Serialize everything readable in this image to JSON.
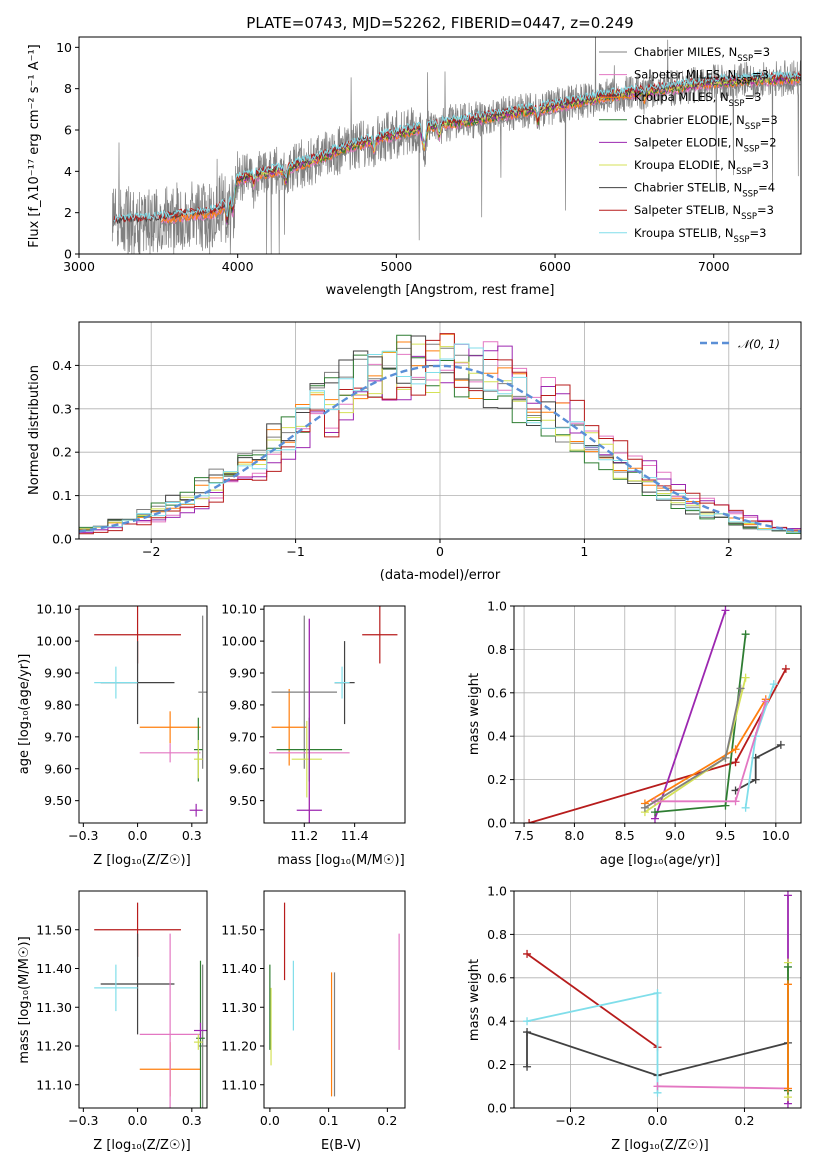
{
  "colors": {
    "chabrier_miles": "#7f7f7f",
    "salpeter_miles": "#e377c2",
    "kroupa_miles": "#ff7f0e",
    "chabrier_elodie": "#2e7d32",
    "salpeter_elodie": "#9c27b0",
    "kroupa_elodie": "#d4e157",
    "chabrier_stelib": "#424242",
    "salpeter_stelib": "#b71c1c",
    "kroupa_stelib": "#80deea",
    "normal": "#5b8fd6"
  },
  "chart_data": [
    {
      "type": "line",
      "title": "PLATE=0743, MJD=52262, FIBERID=0447, z=0.249",
      "xlabel": "wavelength [Angstrom, rest frame]",
      "ylabel": "Flux [f_λ10⁻¹⁷ erg cm⁻² s⁻¹ A⁻¹]",
      "xlim": [
        3000,
        7550
      ],
      "ylim": [
        0,
        10.5
      ],
      "xticks": [
        3000,
        4000,
        5000,
        6000,
        7000
      ],
      "yticks": [
        0,
        2,
        4,
        6,
        8,
        10
      ],
      "legend_position": "top-right",
      "legend": [
        "Chabrier MILES, N_SSP=3",
        "Salpeter MILES, N_SSP=3",
        "Kroupa MILES, N_SSP=3",
        "Chabrier ELODIE, N_SSP=3",
        "Salpeter ELODIE, N_SSP=2",
        "Kroupa ELODIE, N_SSP=3",
        "Chabrier STELIB, N_SSP=4",
        "Salpeter STELIB, N_SSP=3",
        "Kroupa STELIB, N_SSP=3"
      ],
      "continuum": {
        "x": [
          3210,
          3300,
          3400,
          3500,
          3700,
          3850,
          3950,
          4000,
          4100,
          4300,
          4500,
          4700,
          4900,
          5100,
          5300,
          5500,
          5700,
          5900,
          6100,
          6300,
          6500,
          6800,
          7000,
          7200,
          7550
        ],
        "y": [
          1.5,
          1.6,
          1.6,
          1.7,
          1.9,
          2.0,
          2.5,
          3.6,
          3.8,
          4.1,
          4.6,
          5.2,
          5.6,
          6.0,
          6.3,
          6.5,
          6.8,
          7.0,
          7.3,
          7.6,
          7.8,
          8.1,
          8.3,
          8.4,
          8.5
        ]
      },
      "series": [
        {
          "name": "Chabrier MILES, N_SSP=3",
          "start": 3520
        },
        {
          "name": "Salpeter MILES, N_SSP=3",
          "start": 3520
        },
        {
          "name": "Kroupa MILES, N_SSP=3",
          "start": 3520
        },
        {
          "name": "Chabrier ELODIE, N_SSP=3",
          "start": 3920
        },
        {
          "name": "Salpeter ELODIE, N_SSP=2",
          "start": 3920
        },
        {
          "name": "Kroupa ELODIE, N_SSP=3",
          "start": 3920
        },
        {
          "name": "Chabrier STELIB, N_SSP=4",
          "start": 3220
        },
        {
          "name": "Salpeter STELIB, N_SSP=3",
          "start": 3220
        },
        {
          "name": "Kroupa STELIB, N_SSP=3",
          "start": 3220
        }
      ]
    },
    {
      "type": "line",
      "xlabel": "(data-model)/error",
      "ylabel": "Normed distribution",
      "xlim": [
        -2.5,
        2.5
      ],
      "ylim": [
        0,
        0.5
      ],
      "xticks": [
        -2,
        -1,
        0,
        1,
        2
      ],
      "yticks": [
        0.0,
        0.1,
        0.2,
        0.3,
        0.4
      ],
      "grid": true,
      "legend_position": "top-right",
      "normal_label": "𝒩(0, 1)",
      "description": "step histograms of residuals for the nine fits, plus dashed standard normal density"
    },
    {
      "type": "scatter",
      "xlabel": "Z [log₁₀(Z/Z☉)]",
      "ylabel": "age  [log₁₀(age/yr)]",
      "xlim": [
        -0.27,
        0.32
      ],
      "ylim": [
        9.43,
        10.11
      ],
      "xticks": [
        -0.25,
        0.0,
        0.25
      ],
      "yticks": [
        9.5,
        9.6,
        9.7,
        9.8,
        9.9,
        10.0,
        10.1
      ],
      "points": [
        {
          "fit": "Salpeter STELIB",
          "x": 0.0,
          "y": 10.02,
          "xerr": 0.2,
          "yerr": 0.09
        },
        {
          "fit": "Chabrier STELIB",
          "x": 0.0,
          "y": 9.87,
          "xerr": 0.17,
          "yerr": 0.13
        },
        {
          "fit": "Kroupa STELIB",
          "x": -0.1,
          "y": 9.87,
          "xerr": 0.1,
          "yerr": 0.05
        },
        {
          "fit": "Kroupa MILES",
          "x": 0.15,
          "y": 9.73,
          "xerr": 0.14,
          "yerr": 0.05
        },
        {
          "fit": "Chabrier MILES",
          "x": 0.3,
          "y": 9.84,
          "xerr": 0.02,
          "yerr": 0.24
        },
        {
          "fit": "Salpeter MILES",
          "x": 0.15,
          "y": 9.65,
          "xerr": 0.14,
          "yerr": 0.03
        },
        {
          "fit": "Chabrier ELODIE",
          "x": 0.28,
          "y": 9.66,
          "xerr": 0.02,
          "yerr": 0.1
        },
        {
          "fit": "Kroupa ELODIE",
          "x": 0.28,
          "y": 9.63,
          "xerr": 0.02,
          "yerr": 0.06
        },
        {
          "fit": "Salpeter ELODIE",
          "x": 0.27,
          "y": 9.47,
          "xerr": 0.03,
          "yerr": 0.02
        }
      ]
    },
    {
      "type": "scatter",
      "xlabel": "mass [log₁₀(M/M☉)]",
      "xlim": [
        11.04,
        11.6
      ],
      "ylim": [
        9.43,
        10.11
      ],
      "xticks": [
        11.2,
        11.4
      ],
      "yticks": [
        9.5,
        9.6,
        9.7,
        9.8,
        9.9,
        10.0,
        10.1
      ],
      "points": [
        {
          "fit": "Salpeter STELIB",
          "x": 11.5,
          "y": 10.02,
          "xerr": 0.07,
          "yerr": 0.09
        },
        {
          "fit": "Chabrier STELIB",
          "x": 11.36,
          "y": 9.87,
          "xerr": 0.04,
          "yerr": 0.13
        },
        {
          "fit": "Kroupa STELIB",
          "x": 11.35,
          "y": 9.87,
          "xerr": 0.03,
          "yerr": 0.05
        },
        {
          "fit": "Kroupa MILES",
          "x": 11.14,
          "y": 9.73,
          "xerr": 0.07,
          "yerr": 0.12
        },
        {
          "fit": "Chabrier MILES",
          "x": 11.2,
          "y": 9.84,
          "xerr": 0.13,
          "yerr": 0.24
        },
        {
          "fit": "Salpeter MILES",
          "x": 11.22,
          "y": 9.65,
          "xerr": 0.16,
          "yerr": 0.42
        },
        {
          "fit": "Chabrier ELODIE",
          "x": 11.22,
          "y": 9.66,
          "xerr": 0.13,
          "yerr": 0.1
        },
        {
          "fit": "Kroupa ELODIE",
          "x": 11.21,
          "y": 9.63,
          "xerr": 0.06,
          "yerr": 0.12
        },
        {
          "fit": "Salpeter ELODIE",
          "x": 11.22,
          "y": 9.47,
          "xerr": 0.05,
          "yerr": 0.6
        }
      ]
    },
    {
      "type": "line",
      "xlabel": "age  [log₁₀(age/yr)]",
      "ylabel": "mass weight",
      "xlim": [
        7.4,
        10.25
      ],
      "ylim": [
        0,
        1
      ],
      "xticks": [
        7.5,
        8.0,
        8.5,
        9.0,
        9.5,
        10.0
      ],
      "yticks": [
        0.0,
        0.2,
        0.4,
        0.6,
        0.8,
        1.0
      ],
      "grid": true,
      "series": [
        {
          "fit": "Salpeter STELIB",
          "x": [
            7.55,
            9.6,
            10.1
          ],
          "y": [
            0.0,
            0.28,
            0.71
          ]
        },
        {
          "fit": "Chabrier STELIB",
          "x": [
            9.6,
            9.8,
            9.8,
            10.05
          ],
          "y": [
            0.15,
            0.2,
            0.3,
            0.36
          ]
        },
        {
          "fit": "Kroupa STELIB",
          "x": [
            9.7,
            9.8,
            9.98
          ],
          "y": [
            0.07,
            0.4,
            0.64
          ]
        },
        {
          "fit": "Salpeter ELODIE",
          "x": [
            8.8,
            9.5
          ],
          "y": [
            0.02,
            0.98
          ]
        },
        {
          "fit": "Chabrier ELODIE",
          "x": [
            8.8,
            9.5,
            9.7
          ],
          "y": [
            0.05,
            0.08,
            0.87
          ]
        },
        {
          "fit": "Kroupa ELODIE",
          "x": [
            8.7,
            9.5,
            9.7
          ],
          "y": [
            0.05,
            0.3,
            0.67
          ]
        },
        {
          "fit": "Kroupa MILES",
          "x": [
            8.7,
            9.6,
            9.9
          ],
          "y": [
            0.09,
            0.34,
            0.57
          ]
        },
        {
          "fit": "Salpeter MILES",
          "x": [
            8.8,
            9.6,
            9.9
          ],
          "y": [
            0.1,
            0.1,
            0.56
          ]
        },
        {
          "fit": "Chabrier MILES",
          "x": [
            8.7,
            9.5,
            9.65
          ],
          "y": [
            0.07,
            0.3,
            0.62
          ]
        }
      ]
    },
    {
      "type": "scatter",
      "xlabel": "Z [log₁₀(Z/Z☉)]",
      "ylabel": "mass [log₁₀(M/M☉)]",
      "xlim": [
        -0.27,
        0.32
      ],
      "ylim": [
        11.04,
        11.6
      ],
      "xticks": [
        -0.25,
        0.0,
        0.25
      ],
      "yticks": [
        11.1,
        11.2,
        11.3,
        11.4,
        11.5
      ],
      "points": [
        {
          "fit": "Salpeter STELIB",
          "x": 0.0,
          "y": 11.5,
          "xerr": 0.2,
          "yerr": 0.07
        },
        {
          "fit": "Chabrier STELIB",
          "x": 0.0,
          "y": 11.36,
          "xerr": 0.17,
          "yerr": 0.13
        },
        {
          "fit": "Kroupa STELIB",
          "x": -0.1,
          "y": 11.35,
          "xerr": 0.1,
          "yerr": 0.06
        },
        {
          "fit": "Kroupa MILES",
          "x": 0.15,
          "y": 11.14,
          "xerr": 0.14,
          "yerr": 0.07
        },
        {
          "fit": "Chabrier MILES",
          "x": 0.3,
          "y": 11.2,
          "xerr": 0.02,
          "yerr": 0.21
        },
        {
          "fit": "Salpeter MILES",
          "x": 0.15,
          "y": 11.23,
          "xerr": 0.14,
          "yerr": 0.26
        },
        {
          "fit": "Chabrier ELODIE",
          "x": 0.29,
          "y": 11.22,
          "xerr": 0.02,
          "yerr": 0.2
        },
        {
          "fit": "Kroupa ELODIE",
          "x": 0.28,
          "y": 11.21,
          "xerr": 0.02,
          "yerr": 0.02
        },
        {
          "fit": "Salpeter ELODIE",
          "x": 0.29,
          "y": 11.24,
          "xerr": 0.03,
          "yerr": 0.02
        },
        {
          "fit": "Salpeter ELODIE",
          "x": 0.29,
          "y": 11.21,
          "xerr": 0.0,
          "yerr": 0.0
        }
      ]
    },
    {
      "type": "scatter",
      "xlabel": "E(B-V)",
      "xlim": [
        -0.01,
        0.23
      ],
      "ylim": [
        11.04,
        11.6
      ],
      "xticks": [
        0.0,
        0.1,
        0.2
      ],
      "yticks": [
        11.1,
        11.2,
        11.3,
        11.4,
        11.5
      ],
      "points": [
        {
          "fit": "Salpeter STELIB",
          "x": 0.025,
          "y": 11.47,
          "yerr": 0.1
        },
        {
          "fit": "Kroupa STELIB",
          "x": 0.04,
          "y": 11.33,
          "yerr": 0.09
        },
        {
          "fit": "Chabrier ELODIE",
          "x": 0.0,
          "y": 11.3,
          "yerr": 0.11
        },
        {
          "fit": "Kroupa ELODIE",
          "x": 0.002,
          "y": 11.25,
          "yerr": 0.1
        },
        {
          "fit": "Kroupa MILES",
          "x": 0.105,
          "y": 11.23,
          "yerr": 0.16
        },
        {
          "fit": "Chabrier MILES",
          "x": 0.11,
          "y": 11.23,
          "yerr": 0.16
        },
        {
          "fit": "Salpeter MILES",
          "x": 0.22,
          "y": 11.34,
          "yerr": 0.15
        }
      ]
    },
    {
      "type": "line",
      "xlabel": "Z [log₁₀(Z/Z☉)]",
      "ylabel": "mass weight",
      "xlim": [
        -0.33,
        0.33
      ],
      "ylim": [
        0,
        1
      ],
      "xticks": [
        -0.2,
        0.0,
        0.2
      ],
      "yticks": [
        0.0,
        0.2,
        0.4,
        0.6,
        0.8,
        1.0
      ],
      "grid": true,
      "series": [
        {
          "fit": "Salpeter STELIB",
          "x": [
            -0.3,
            0.0
          ],
          "y": [
            0.71,
            0.28
          ]
        },
        {
          "fit": "Chabrier STELIB",
          "x": [
            -0.3,
            -0.3,
            0.0,
            0.3
          ],
          "y": [
            0.19,
            0.35,
            0.15,
            0.3
          ]
        },
        {
          "fit": "Kroupa STELIB",
          "x": [
            -0.3,
            0.0,
            0.0
          ],
          "y": [
            0.4,
            0.53,
            0.07
          ]
        },
        {
          "fit": "Salpeter MILES",
          "x": [
            0.0,
            0.3
          ],
          "y": [
            0.1,
            0.09
          ]
        },
        {
          "fit": "Salpeter ELODIE",
          "x": [
            0.3,
            0.3
          ],
          "y": [
            0.02,
            0.98
          ]
        },
        {
          "fit": "Kroupa ELODIE",
          "x": [
            0.3,
            0.3
          ],
          "y": [
            0.05,
            0.67
          ]
        },
        {
          "fit": "Chabrier ELODIE",
          "x": [
            0.3,
            0.3
          ],
          "y": [
            0.08,
            0.65
          ]
        },
        {
          "fit": "Kroupa MILES",
          "x": [
            0.3,
            0.3
          ],
          "y": [
            0.09,
            0.57
          ]
        }
      ]
    }
  ]
}
